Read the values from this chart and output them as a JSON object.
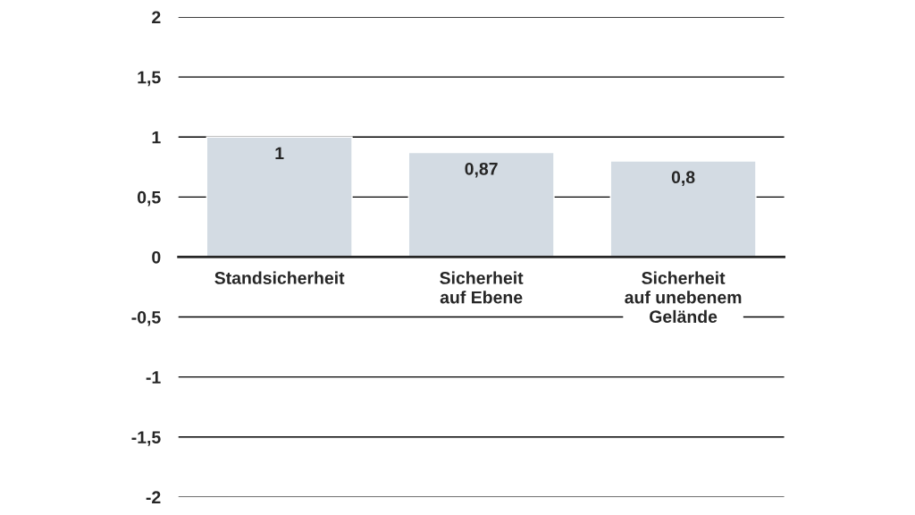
{
  "chart_data": {
    "type": "bar",
    "categories": [
      "Standsicherheit",
      "Sicherheit\nauf Ebene",
      "Sicherheit\nauf unebenem\nGelände"
    ],
    "values": [
      1,
      0.87,
      0.8
    ],
    "value_labels": [
      "1",
      "0,87",
      "0,8"
    ],
    "color": "#d3dbe3",
    "ylim": [
      -2,
      2
    ],
    "yticks": [
      {
        "value": -2,
        "label": "-2"
      },
      {
        "value": -1.5,
        "label": "-1,5"
      },
      {
        "value": -1,
        "label": "-1"
      },
      {
        "value": -0.5,
        "label": "-0,5"
      },
      0,
      {
        "value": 0.5,
        "label": "0,5"
      },
      1,
      {
        "value": 1.5,
        "label": "1,5"
      },
      2
    ],
    "grid": "y",
    "legend": false
  }
}
